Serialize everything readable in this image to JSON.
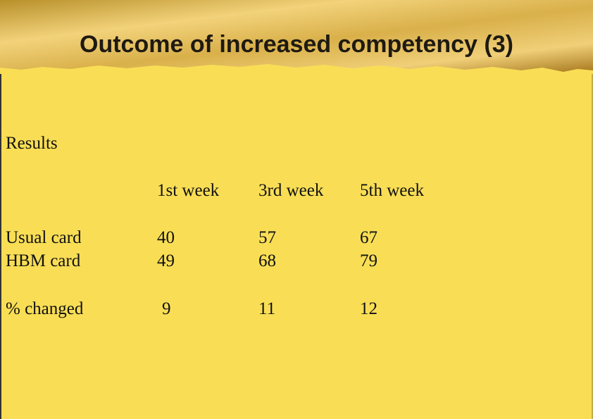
{
  "title": "Outcome of increased competency (3)",
  "section": "Results",
  "table": {
    "columns": [
      "1st week",
      "3rd week",
      "5th week"
    ],
    "rows": [
      {
        "label": "Usual card",
        "cells": [
          40,
          57,
          67
        ]
      },
      {
        "label": "HBM card",
        "cells": [
          49,
          68,
          79
        ]
      },
      {
        "label": "% changed",
        "cells": [
          9,
          11,
          12
        ]
      }
    ]
  }
}
